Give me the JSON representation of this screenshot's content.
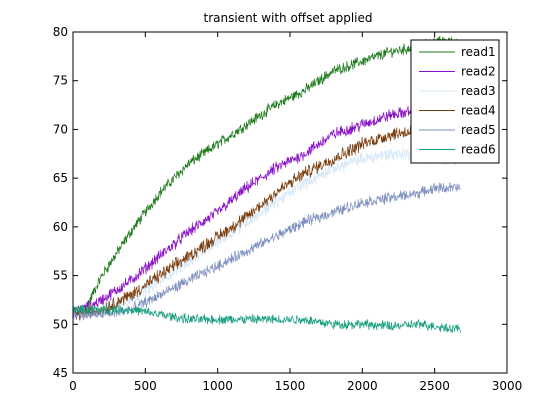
{
  "chart_data": {
    "type": "line",
    "title": "transient with offset applied",
    "xlabel": "",
    "ylabel": "",
    "xlim": [
      0,
      3000
    ],
    "ylim": [
      45,
      80
    ],
    "xticks": [
      0,
      500,
      1000,
      1500,
      2000,
      2500,
      3000
    ],
    "yticks": [
      45,
      50,
      55,
      60,
      65,
      70,
      75,
      80
    ],
    "grid": false,
    "legend_position": "top-right",
    "x_end": 2680,
    "series": [
      {
        "name": "read1",
        "color": "#1a7a1a",
        "noise": 0.45,
        "x": [
          0,
          100,
          200,
          400,
          600,
          800,
          1000,
          1200,
          1400,
          1600,
          1800,
          2000,
          2200,
          2400,
          2500,
          2680
        ],
        "y": [
          51.0,
          52.0,
          55.0,
          59.5,
          63.5,
          66.5,
          68.5,
          70.5,
          72.5,
          74.0,
          76.0,
          77.0,
          78.0,
          78.5,
          79.0,
          79.0
        ]
      },
      {
        "name": "read2",
        "color": "#8a0fc8",
        "noise": 0.5,
        "x": [
          0,
          200,
          400,
          600,
          800,
          1000,
          1200,
          1400,
          1600,
          1800,
          2000,
          2200,
          2400,
          2500,
          2680
        ],
        "y": [
          51.0,
          52.5,
          54.5,
          57.0,
          59.5,
          61.5,
          64.0,
          66.0,
          67.5,
          69.5,
          70.5,
          71.5,
          72.0,
          72.0,
          72.0
        ]
      },
      {
        "name": "read3",
        "color": "#d6e8f8",
        "noise": 0.55,
        "x": [
          0,
          200,
          400,
          600,
          800,
          1000,
          1200,
          1400,
          1600,
          1800,
          2000,
          2200,
          2400,
          2500,
          2680
        ],
        "y": [
          51.0,
          51.5,
          52.5,
          54.5,
          56.5,
          58.5,
          60.5,
          62.5,
          64.5,
          66.0,
          67.0,
          67.5,
          67.5,
          67.0,
          67.0
        ]
      },
      {
        "name": "read4",
        "color": "#7a3c0c",
        "noise": 0.55,
        "x": [
          0,
          200,
          400,
          600,
          800,
          1000,
          1200,
          1400,
          1600,
          1800,
          2000,
          2200,
          2400,
          2500,
          2680
        ],
        "y": [
          51.0,
          51.5,
          53.0,
          55.0,
          57.0,
          59.0,
          61.0,
          63.5,
          65.5,
          67.0,
          68.5,
          69.5,
          70.0,
          70.0,
          70.0
        ]
      },
      {
        "name": "read5",
        "color": "#7f90c0",
        "noise": 0.45,
        "x": [
          0,
          200,
          400,
          600,
          800,
          1000,
          1200,
          1400,
          1600,
          1800,
          2000,
          2200,
          2400,
          2500,
          2680
        ],
        "y": [
          51.0,
          51.0,
          51.5,
          53.0,
          54.5,
          56.0,
          57.5,
          59.0,
          60.5,
          61.5,
          62.5,
          63.0,
          63.5,
          64.0,
          64.0
        ]
      },
      {
        "name": "read6",
        "color": "#1aa080",
        "noise": 0.4,
        "x": [
          0,
          200,
          400,
          600,
          800,
          1000,
          1200,
          1400,
          1600,
          1800,
          2000,
          2200,
          2400,
          2500,
          2680
        ],
        "y": [
          51.5,
          51.5,
          51.5,
          51.0,
          50.5,
          50.5,
          50.5,
          50.5,
          50.5,
          50.0,
          50.0,
          49.8,
          50.0,
          49.8,
          49.5
        ]
      }
    ]
  }
}
